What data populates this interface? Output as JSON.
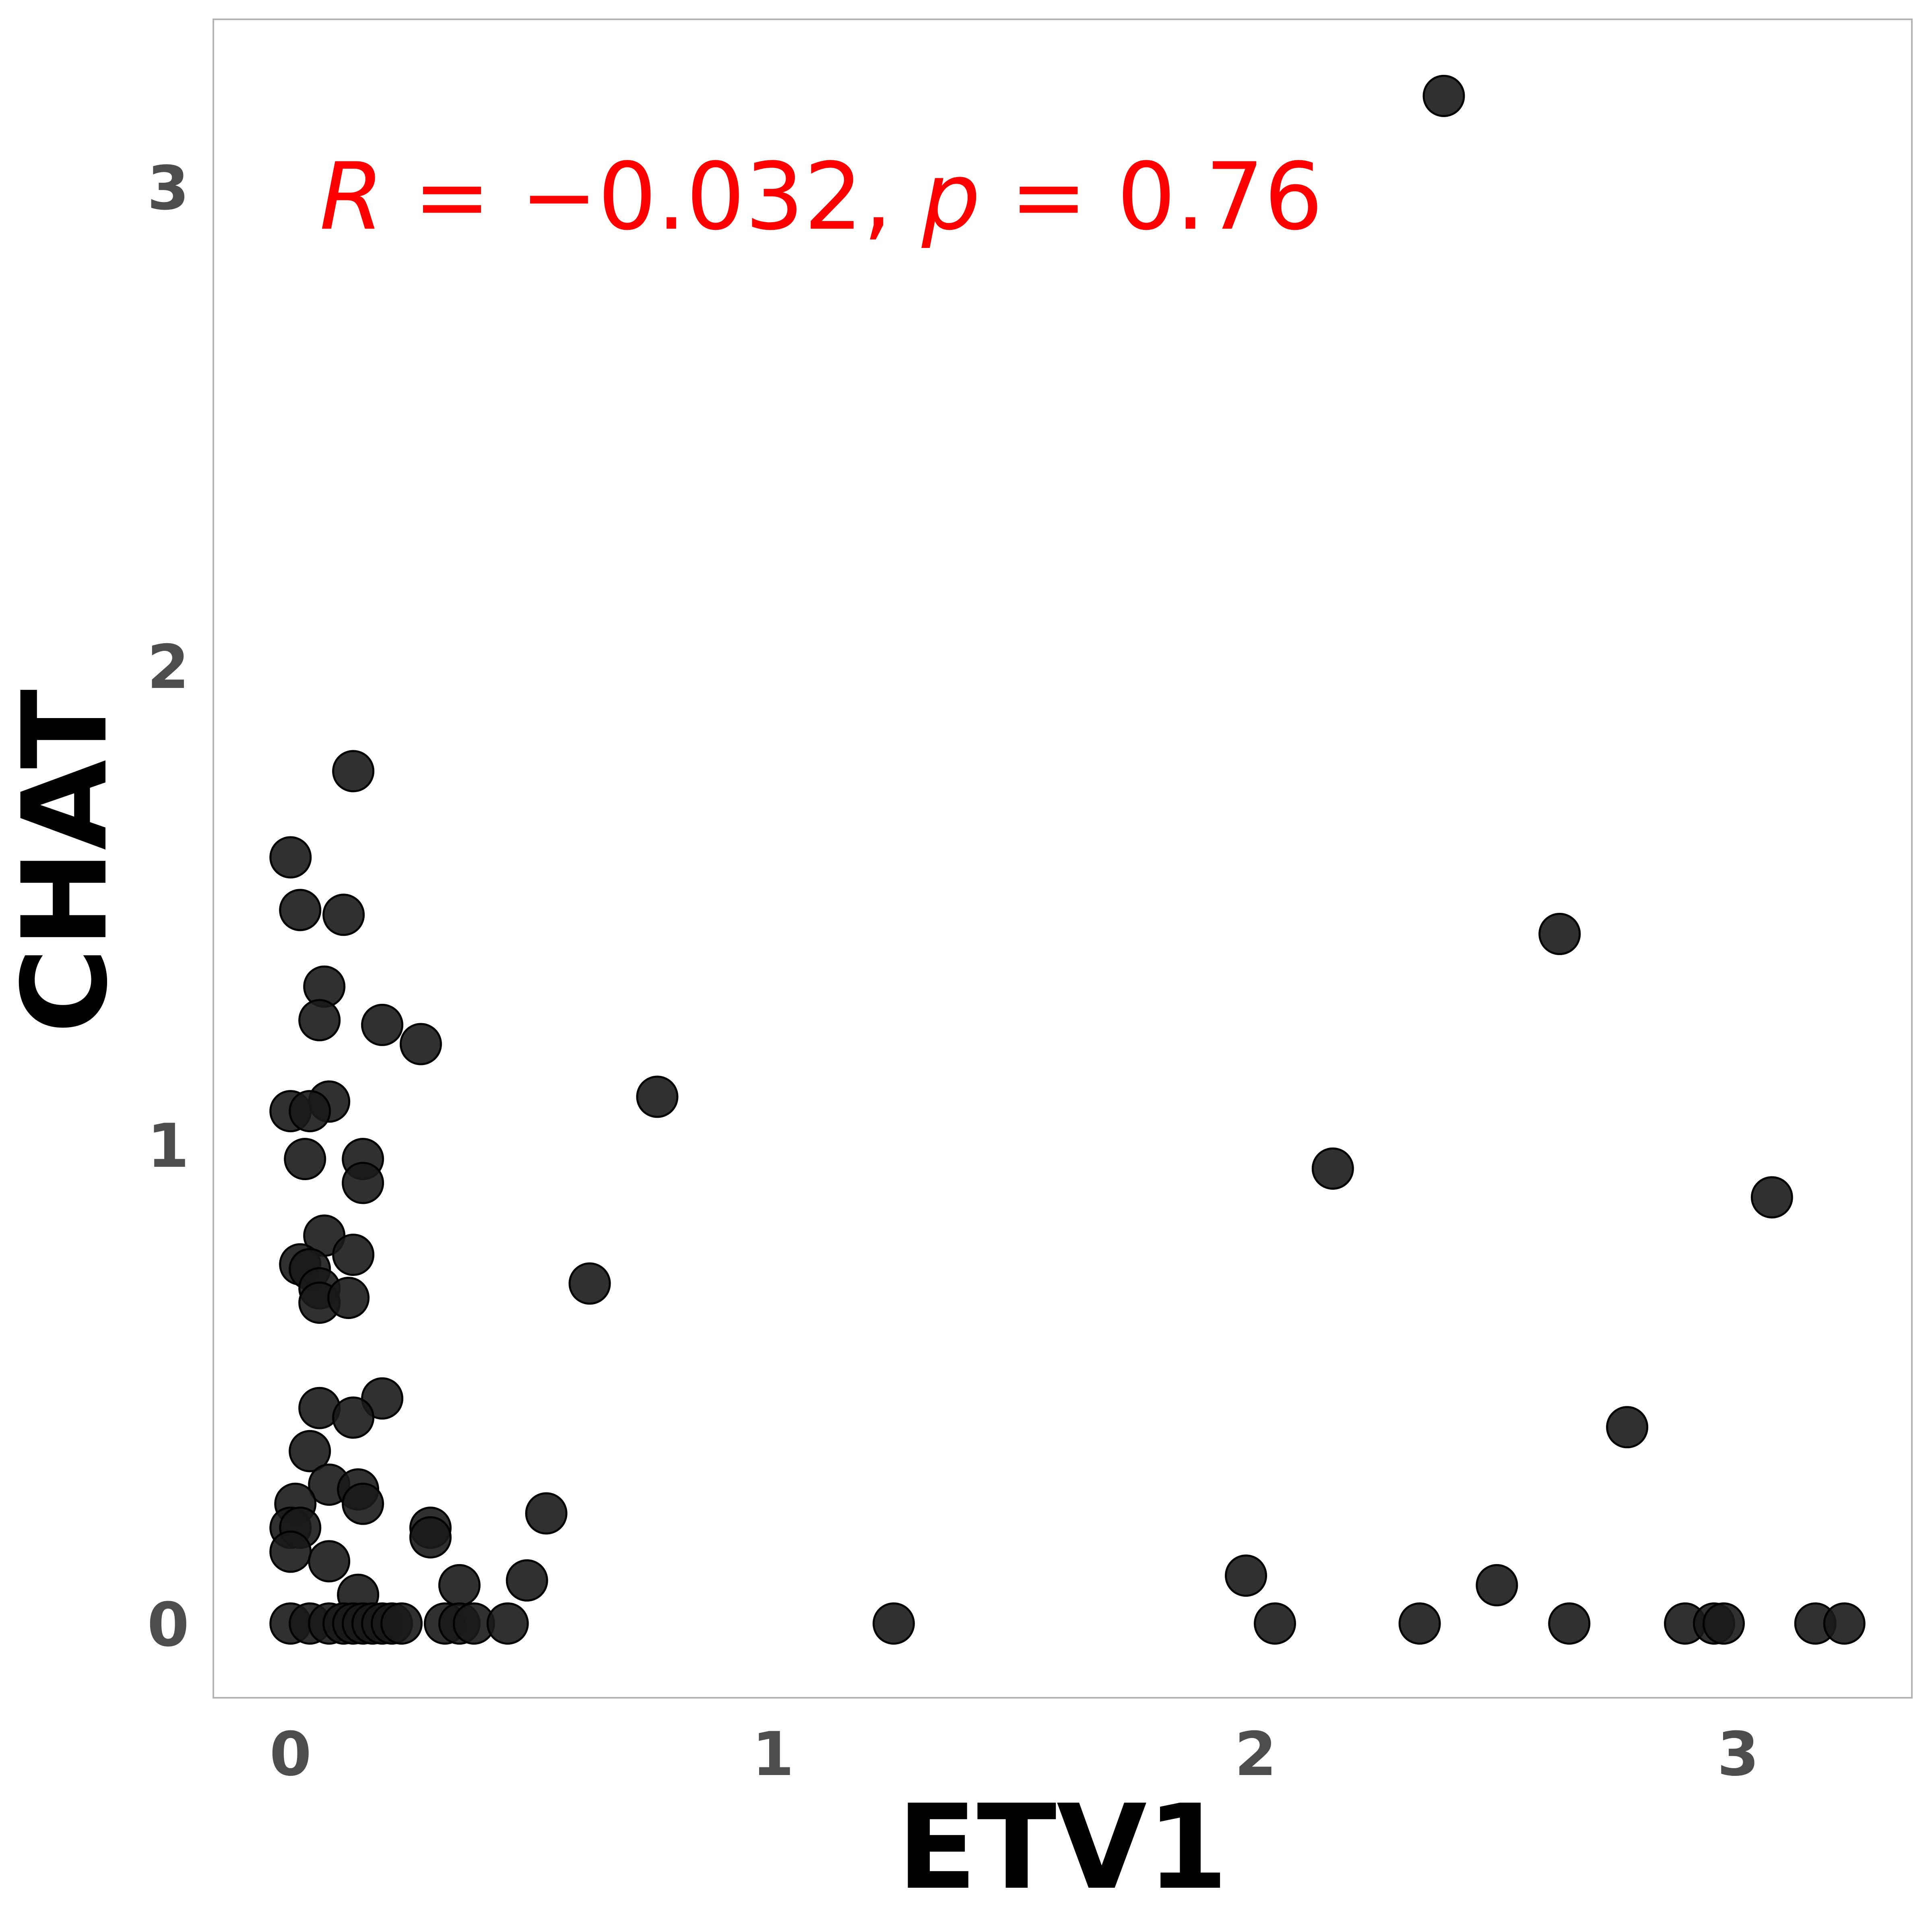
{
  "chart_data": {
    "type": "scatter",
    "title": "",
    "xlabel": "ETV1",
    "ylabel": "CHAT",
    "xlim": [
      -0.16,
      3.36
    ],
    "ylim": [
      -0.155,
      3.35
    ],
    "xticks": [
      0,
      1,
      2,
      3
    ],
    "yticks": [
      0,
      1,
      2,
      3
    ],
    "grid": false,
    "annotation": {
      "r_label": "R",
      "eq1": " = ",
      "r_value": "−0.032",
      "sep": ", ",
      "p_label": "p",
      "eq2": " = ",
      "p_value": "0.76",
      "x": 0.06,
      "y": 2.98,
      "color": "#ff0000"
    },
    "point_color": "#1a1a1a",
    "points": [
      {
        "x": 2.39,
        "y": 3.19
      },
      {
        "x": 0.13,
        "y": 1.78
      },
      {
        "x": 0.0,
        "y": 1.6
      },
      {
        "x": 0.02,
        "y": 1.49
      },
      {
        "x": 0.11,
        "y": 1.48
      },
      {
        "x": 2.63,
        "y": 1.44
      },
      {
        "x": 0.07,
        "y": 1.33
      },
      {
        "x": 0.06,
        "y": 1.26
      },
      {
        "x": 0.19,
        "y": 1.25
      },
      {
        "x": 0.27,
        "y": 1.21
      },
      {
        "x": 0.08,
        "y": 1.09
      },
      {
        "x": 0.0,
        "y": 1.07
      },
      {
        "x": 0.04,
        "y": 1.07
      },
      {
        "x": 0.76,
        "y": 1.1
      },
      {
        "x": 0.03,
        "y": 0.97
      },
      {
        "x": 0.15,
        "y": 0.97
      },
      {
        "x": 0.15,
        "y": 0.92
      },
      {
        "x": 2.16,
        "y": 0.95
      },
      {
        "x": 3.07,
        "y": 0.89
      },
      {
        "x": 0.07,
        "y": 0.81
      },
      {
        "x": 0.13,
        "y": 0.77
      },
      {
        "x": 0.02,
        "y": 0.75
      },
      {
        "x": 0.04,
        "y": 0.74
      },
      {
        "x": 0.06,
        "y": 0.7
      },
      {
        "x": 0.06,
        "y": 0.67
      },
      {
        "x": 0.12,
        "y": 0.68
      },
      {
        "x": 0.62,
        "y": 0.71
      },
      {
        "x": 0.19,
        "y": 0.47
      },
      {
        "x": 0.06,
        "y": 0.45
      },
      {
        "x": 0.13,
        "y": 0.43
      },
      {
        "x": 0.04,
        "y": 0.36
      },
      {
        "x": 2.77,
        "y": 0.41
      },
      {
        "x": 0.08,
        "y": 0.29
      },
      {
        "x": 0.14,
        "y": 0.28
      },
      {
        "x": 0.01,
        "y": 0.25
      },
      {
        "x": 0.15,
        "y": 0.25
      },
      {
        "x": 0.53,
        "y": 0.23
      },
      {
        "x": 0.0,
        "y": 0.2
      },
      {
        "x": 0.02,
        "y": 0.2
      },
      {
        "x": 0.29,
        "y": 0.2
      },
      {
        "x": 0.29,
        "y": 0.18
      },
      {
        "x": 0.0,
        "y": 0.15
      },
      {
        "x": 0.08,
        "y": 0.13
      },
      {
        "x": 1.98,
        "y": 0.1
      },
      {
        "x": 0.49,
        "y": 0.09
      },
      {
        "x": 2.5,
        "y": 0.08
      },
      {
        "x": 0.35,
        "y": 0.08
      },
      {
        "x": 0.14,
        "y": 0.06
      },
      {
        "x": 0.0,
        "y": 0.0
      },
      {
        "x": 0.04,
        "y": 0.0
      },
      {
        "x": 0.08,
        "y": 0.0
      },
      {
        "x": 0.11,
        "y": 0.0
      },
      {
        "x": 0.13,
        "y": 0.0
      },
      {
        "x": 0.15,
        "y": 0.0
      },
      {
        "x": 0.17,
        "y": 0.0
      },
      {
        "x": 0.19,
        "y": 0.0
      },
      {
        "x": 0.21,
        "y": 0.0
      },
      {
        "x": 0.23,
        "y": 0.0
      },
      {
        "x": 0.32,
        "y": 0.0
      },
      {
        "x": 0.35,
        "y": 0.0
      },
      {
        "x": 0.38,
        "y": 0.0
      },
      {
        "x": 0.45,
        "y": 0.0
      },
      {
        "x": 1.25,
        "y": 0.0
      },
      {
        "x": 2.04,
        "y": 0.0
      },
      {
        "x": 2.34,
        "y": 0.0
      },
      {
        "x": 2.65,
        "y": 0.0
      },
      {
        "x": 2.89,
        "y": 0.0
      },
      {
        "x": 2.95,
        "y": 0.0
      },
      {
        "x": 2.97,
        "y": 0.0
      },
      {
        "x": 3.16,
        "y": 0.0
      },
      {
        "x": 3.22,
        "y": 0.0
      }
    ]
  }
}
